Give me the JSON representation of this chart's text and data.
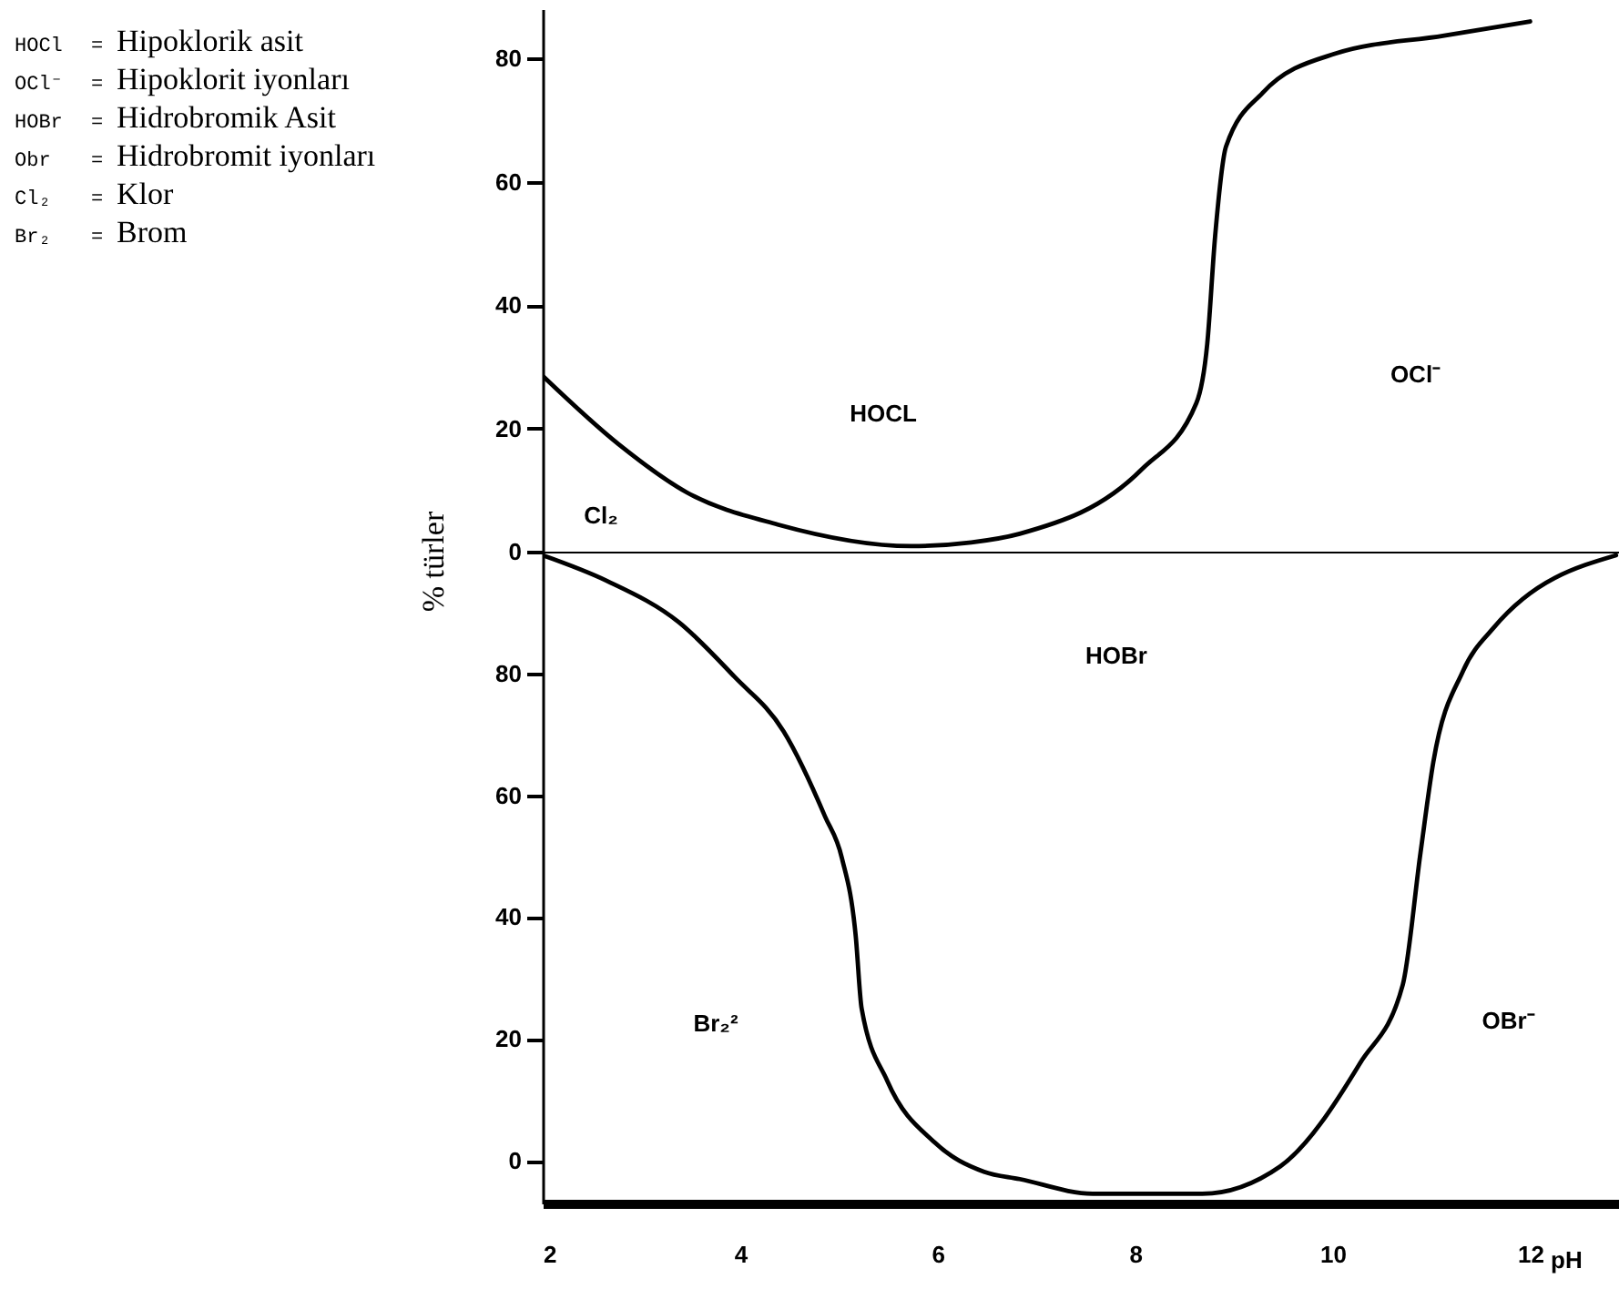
{
  "chart_data": [
    {
      "type": "line",
      "ylabel": "% türler",
      "xlim": [
        2,
        12.9
      ],
      "xticks": [
        2,
        4,
        6,
        8,
        10,
        12
      ],
      "ylim": [
        0,
        88
      ],
      "yticks": [
        0,
        20,
        40,
        60,
        80
      ],
      "tick_labels": "y",
      "x": [
        2,
        2.77,
        3.46,
        4.38,
        5.73,
        6.34,
        6.83,
        8.07,
        8.62,
        8.73,
        8.81,
        8.92,
        9.29,
        10.03,
        11.13,
        12
      ],
      "series": [
        {
          "color": "#000000",
          "values": [
            28.5,
            17.4,
            9.6,
            4.4,
            0.9,
            1.5,
            2.9,
            13.4,
            24.1,
            33.7,
            51.2,
            65.7,
            74.4,
            80.8,
            83.7,
            86
          ]
        }
      ],
      "annotations": [
        "HOCl = Hipoklorik asit",
        "OCl⁻ = Hipoklorit iyonları",
        "HOBr = Hidrobromik Asit",
        "Obr = Hidrobromit iyonları",
        "Cl₂ = Klor",
        "Br₂ = Brom",
        "Cl₂",
        "HOCL",
        "OCl⁻"
      ]
    },
    {
      "type": "line",
      "xlabel": "pH",
      "xlim": [
        2,
        12.9
      ],
      "xticks": [
        2,
        4,
        6,
        8,
        10,
        12
      ],
      "ylim": [
        -7,
        100
      ],
      "yticks": [
        0,
        20,
        40,
        60,
        80
      ],
      "x": [
        2,
        2.65,
        3.38,
        3.94,
        4.44,
        4.86,
        5.03,
        5.17,
        5.23,
        5.49,
        5.97,
        6.47,
        6.83,
        7.57,
        8.68,
        9.47,
        10.28,
        10.71,
        10.89,
        11.02,
        11.32,
        11.63,
        12.87
      ],
      "series": [
        {
          "color": "#000000",
          "values": [
            99.4,
            95.2,
            88.4,
            79.5,
            70.5,
            56.5,
            49.7,
            36.9,
            25,
            13.1,
            3,
            -1.8,
            -3,
            -5.4,
            -5.4,
            -0.9,
            16.1,
            28.9,
            50.6,
            65.5,
            80.4,
            87.5,
            99.4
          ]
        }
      ],
      "annotations": [
        "HOBr",
        "Br₂²",
        "OBr⁻"
      ]
    }
  ]
}
